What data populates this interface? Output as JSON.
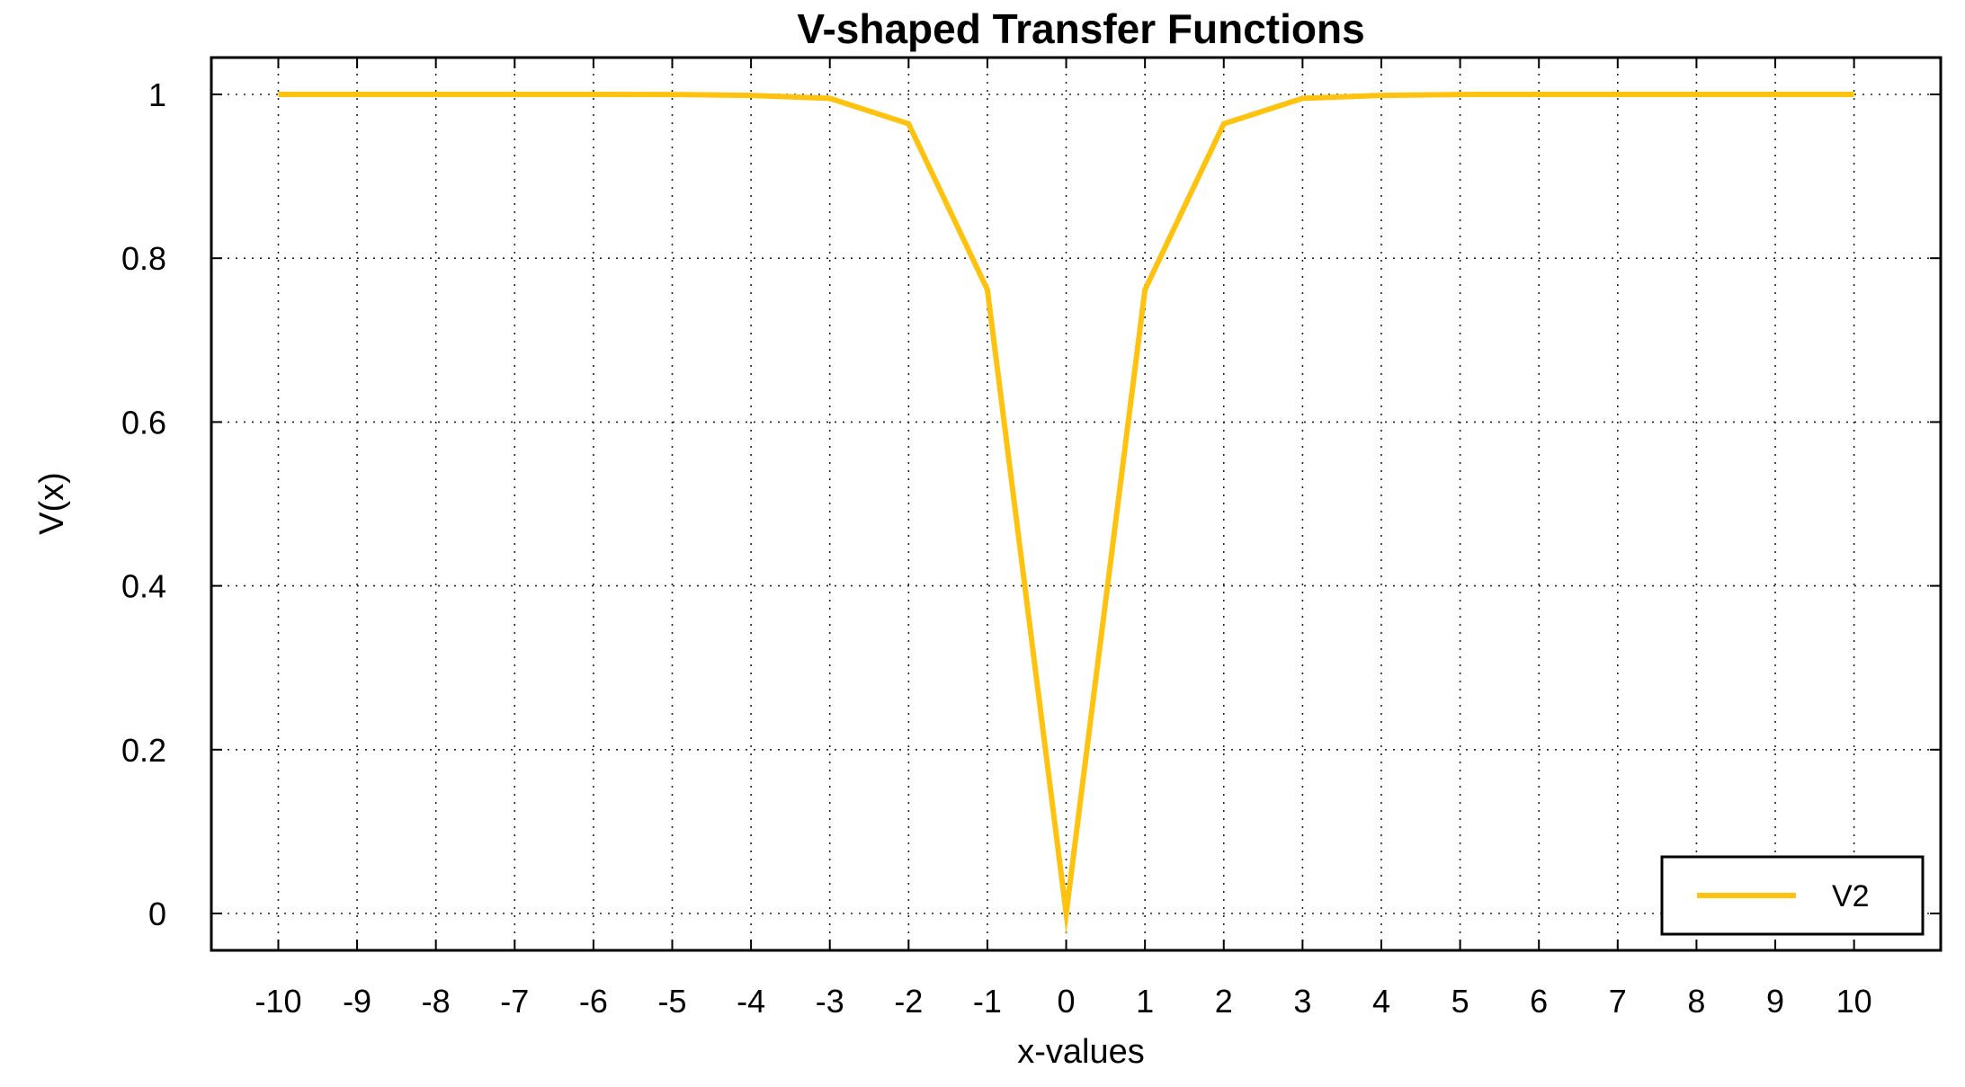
{
  "chart_data": {
    "type": "line",
    "title": "V-shaped Transfer Functions",
    "xlabel": "x-values",
    "ylabel": "V(x)",
    "xlim": [
      -10.85,
      11.1
    ],
    "ylim": [
      -0.045,
      1.045
    ],
    "grid": true,
    "grid_style": "dotted",
    "x_ticks": [
      -10,
      -9,
      -8,
      -7,
      -6,
      -5,
      -4,
      -3,
      -2,
      -1,
      0,
      1,
      2,
      3,
      4,
      5,
      6,
      7,
      8,
      9,
      10
    ],
    "x_tick_labels": [
      "-10",
      "-9",
      "-8",
      "-7",
      "-6",
      "-5",
      "-4",
      "-3",
      "-2",
      "-1",
      "0",
      "1",
      "2",
      "3",
      "4",
      "5",
      "6",
      "7",
      "8",
      "9",
      "10"
    ],
    "y_ticks": [
      0,
      0.2,
      0.4,
      0.6,
      0.8,
      1
    ],
    "y_tick_labels": [
      "0",
      "0.2",
      "0.4",
      "0.6",
      "0.8",
      "1"
    ],
    "legend_position": "bottom-right",
    "series": [
      {
        "name": "V2",
        "color": "#FFC20E",
        "x": [
          -10,
          -9,
          -8,
          -7,
          -6,
          -5,
          -4,
          -3,
          -2,
          -1,
          0,
          1,
          2,
          3,
          4,
          5,
          6,
          7,
          8,
          9,
          10
        ],
        "y": [
          1.0,
          1.0,
          1.0,
          1.0,
          1.0,
          0.9999,
          0.9988,
          0.9952,
          0.9641,
          0.7616,
          0.0,
          0.7616,
          0.9641,
          0.9952,
          0.9988,
          0.9999,
          1.0,
          1.0,
          1.0,
          1.0,
          1.0
        ]
      }
    ]
  }
}
